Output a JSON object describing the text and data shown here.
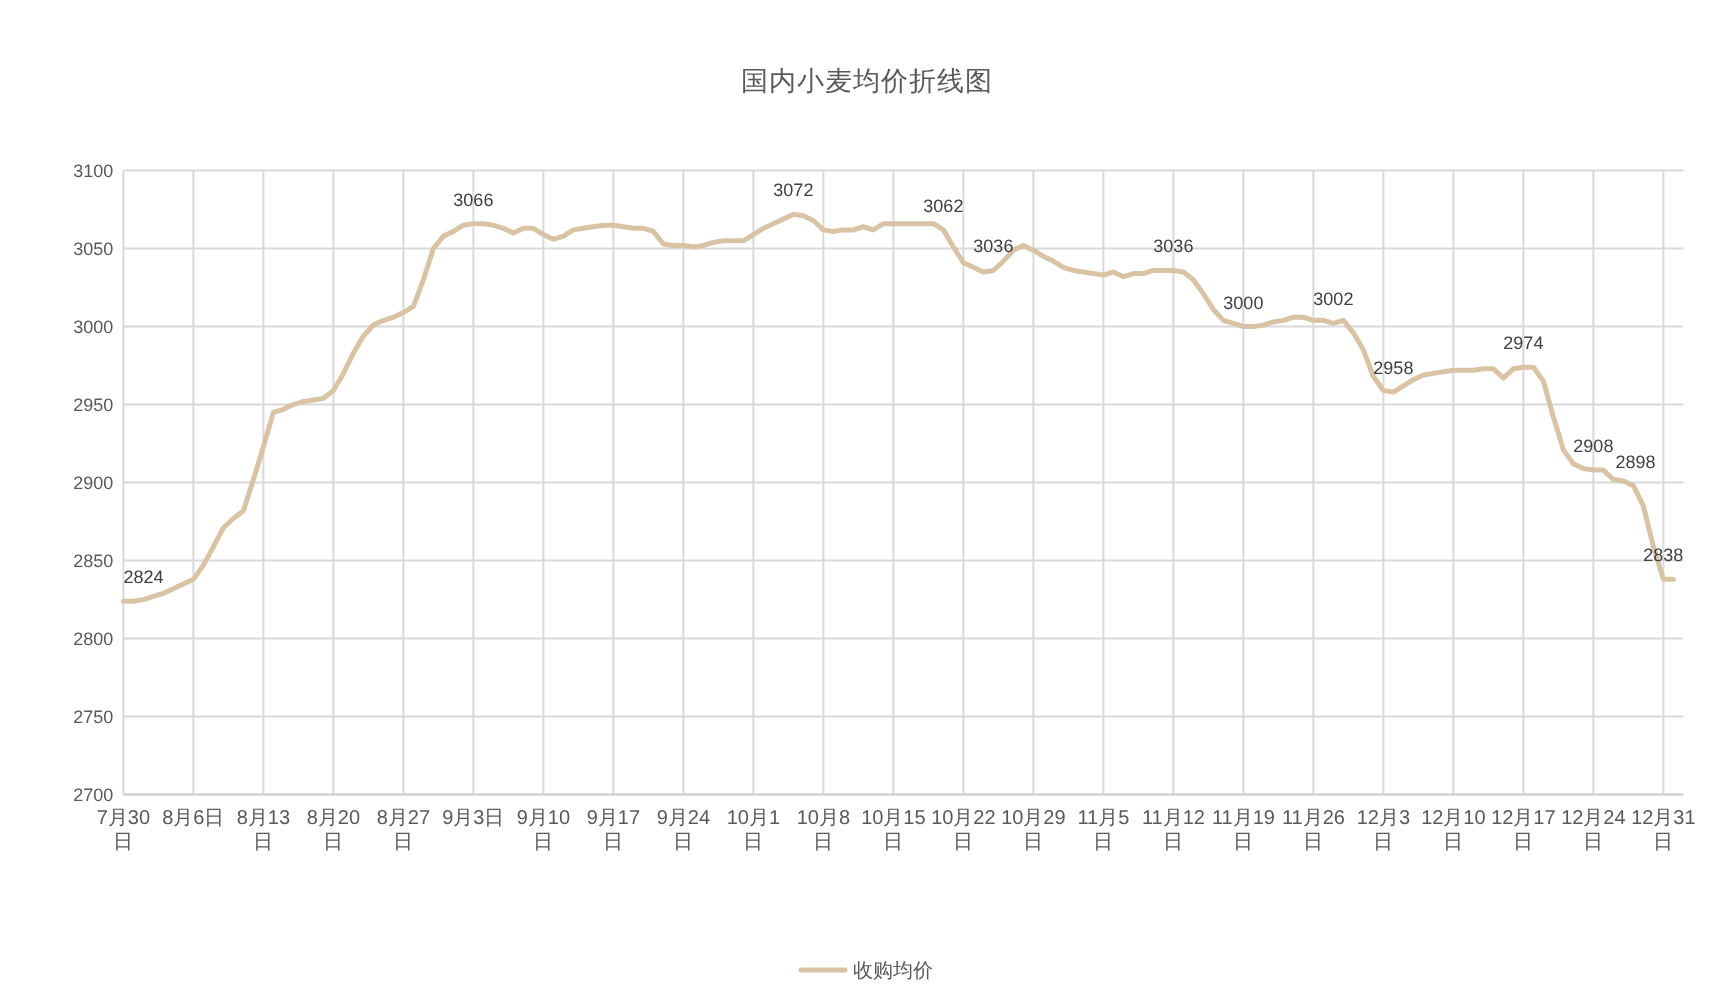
{
  "chart_data": {
    "type": "line",
    "title": "国内小麦均价折线图",
    "categories": [
      "7月30日",
      null,
      null,
      null,
      null,
      null,
      null,
      "8月6日",
      null,
      null,
      null,
      null,
      null,
      null,
      "8月13日",
      null,
      null,
      null,
      null,
      null,
      null,
      "8月20日",
      null,
      null,
      null,
      null,
      null,
      null,
      "8月27日",
      null,
      null,
      null,
      null,
      null,
      null,
      "9月3日",
      null,
      null,
      null,
      null,
      null,
      null,
      "9月10日",
      null,
      null,
      null,
      null,
      null,
      null,
      "9月17日",
      null,
      null,
      null,
      null,
      null,
      null,
      "9月24日",
      null,
      null,
      null,
      null,
      null,
      null,
      "10月1日",
      null,
      null,
      null,
      null,
      null,
      null,
      "10月8日",
      null,
      null,
      null,
      null,
      null,
      null,
      "10月15日",
      null,
      null,
      null,
      null,
      null,
      null,
      "10月22日",
      null,
      null,
      null,
      null,
      null,
      null,
      "10月29日",
      null,
      null,
      null,
      null,
      null,
      null,
      "11月5日",
      null,
      null,
      null,
      null,
      null,
      null,
      "11月12日",
      null,
      null,
      null,
      null,
      null,
      null,
      "11月19日",
      null,
      null,
      null,
      null,
      null,
      null,
      "11月26日",
      null,
      null,
      null,
      null,
      null,
      null,
      "12月3日",
      null,
      null,
      null,
      null,
      null,
      null,
      "12月10日",
      null,
      null,
      null,
      null,
      null,
      null,
      "12月17日",
      null,
      null,
      null,
      null,
      null,
      null,
      "12月24日",
      null,
      null,
      null,
      null,
      null,
      null,
      "12月31日",
      null,
      null
    ],
    "series": [
      {
        "name": "收购均价",
        "color": "#d9c3a5",
        "values": [
          2824,
          2824,
          2825,
          2827,
          2829,
          2832,
          2835,
          2838,
          2847,
          2859,
          2871,
          2877,
          2882,
          2902,
          2923,
          2945,
          2947,
          2950,
          2952,
          2953,
          2954,
          2959,
          2970,
          2983,
          2994,
          3001,
          3004,
          3006,
          3009,
          3013,
          3030,
          3050,
          3058,
          3061,
          3065,
          3066,
          3066,
          3065,
          3063,
          3060,
          3063,
          3063,
          3059,
          3056,
          3058,
          3062,
          3063,
          3064,
          3065,
          3065,
          3064,
          3063,
          3063,
          3061,
          3053,
          3052,
          3052,
          3051,
          3052,
          3054,
          3055,
          3055,
          3055,
          3059,
          3063,
          3066,
          3069,
          3072,
          3071,
          3068,
          3062,
          3061,
          3062,
          3062,
          3064,
          3062,
          3066,
          3066,
          3066,
          3066,
          3066,
          3066,
          3062,
          3051,
          3041,
          3038,
          3035,
          3036,
          3042,
          3049,
          3052,
          3049,
          3045,
          3042,
          3038,
          3036,
          3035,
          3034,
          3033,
          3035,
          3032,
          3034,
          3034,
          3036,
          3036,
          3036,
          3035,
          3030,
          3021,
          3011,
          3004,
          3002,
          3000,
          3000,
          3001,
          3003,
          3004,
          3006,
          3006,
          3004,
          3004,
          3002,
          3004,
          2996,
          2985,
          2968,
          2959,
          2958,
          2962,
          2966,
          2969,
          2970,
          2971,
          2972,
          2972,
          2972,
          2973,
          2973,
          2967,
          2973,
          2974,
          2974,
          2965,
          2942,
          2921,
          2912,
          2909,
          2908,
          2908,
          2902,
          2901,
          2898,
          2885,
          2859,
          2838,
          2838,
          null
        ],
        "value_labels": [
          "2824",
          null,
          null,
          null,
          null,
          null,
          null,
          null,
          null,
          null,
          null,
          null,
          null,
          null,
          null,
          null,
          null,
          null,
          null,
          null,
          null,
          null,
          null,
          null,
          null,
          null,
          null,
          null,
          null,
          null,
          null,
          null,
          null,
          null,
          null,
          "3066",
          null,
          null,
          null,
          null,
          null,
          null,
          null,
          null,
          null,
          null,
          null,
          null,
          null,
          null,
          null,
          null,
          null,
          null,
          null,
          null,
          null,
          null,
          null,
          null,
          null,
          null,
          null,
          null,
          null,
          null,
          null,
          "3072",
          null,
          null,
          null,
          null,
          null,
          null,
          null,
          null,
          null,
          null,
          null,
          null,
          null,
          null,
          "3062",
          null,
          null,
          null,
          null,
          "3036",
          null,
          null,
          null,
          null,
          null,
          null,
          null,
          null,
          null,
          null,
          null,
          null,
          null,
          null,
          null,
          null,
          null,
          "3036",
          null,
          null,
          null,
          null,
          null,
          null,
          "3000",
          null,
          null,
          null,
          null,
          null,
          null,
          null,
          null,
          "3002",
          null,
          null,
          null,
          null,
          null,
          "2958",
          null,
          null,
          null,
          null,
          null,
          null,
          null,
          null,
          null,
          null,
          null,
          null,
          "2974",
          null,
          null,
          null,
          null,
          null,
          null,
          "2908",
          null,
          null,
          null,
          "2898",
          null,
          null,
          "2838",
          null,
          null
        ]
      }
    ],
    "ylim": [
      2700,
      3100
    ],
    "yticks": [
      2700,
      2750,
      2800,
      2850,
      2900,
      2950,
      3000,
      3050,
      3100
    ],
    "grid": true,
    "legend": "bottom"
  }
}
